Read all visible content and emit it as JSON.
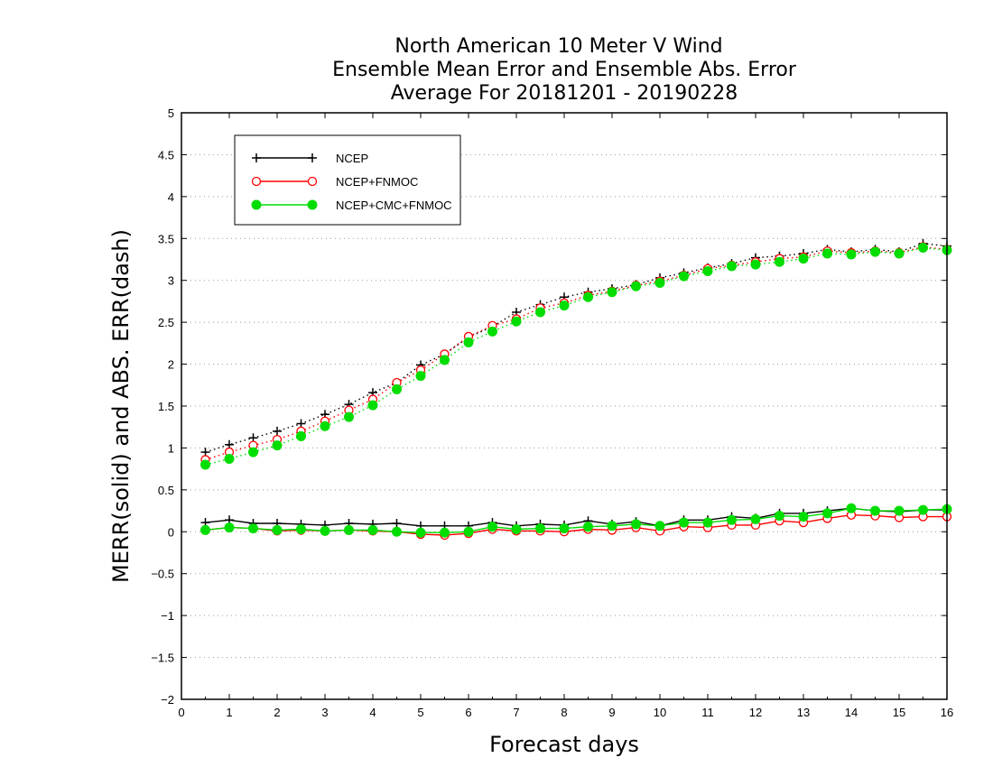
{
  "chart_data": {
    "type": "line",
    "title_lines": [
      "North American 10 Meter V Wind",
      "Ensemble Mean Error and Ensemble Abs. Error",
      "Average For 20181201 - 20190228"
    ],
    "xlabel": "Forecast days",
    "ylabel": "MERR(solid) and ABS. ERR(dash)",
    "xlim": [
      0,
      16
    ],
    "ylim": [
      -2,
      5
    ],
    "x_ticks": [
      0,
      1,
      2,
      3,
      4,
      5,
      6,
      7,
      8,
      9,
      10,
      11,
      12,
      13,
      14,
      15,
      16
    ],
    "y_ticks": [
      -2,
      -1.5,
      -1,
      -0.5,
      0,
      0.5,
      1,
      1.5,
      2,
      2.5,
      3,
      3.5,
      4,
      4.5,
      5
    ],
    "y_tick_labels": [
      "−2",
      "−1.5",
      "−1",
      "−0.5",
      "0",
      "0.5",
      "1",
      "1.5",
      "2",
      "2.5",
      "3",
      "3.5",
      "4",
      "4.5",
      "5"
    ],
    "grid": "horizontal dotted",
    "legend_position": "top-left",
    "x": [
      0.5,
      1,
      1.5,
      2,
      2.5,
      3,
      3.5,
      4,
      4.5,
      5,
      5.5,
      6,
      6.5,
      7,
      7.5,
      8,
      8.5,
      9,
      9.5,
      10,
      10.5,
      11,
      11.5,
      12,
      12.5,
      13,
      13.5,
      14,
      14.5,
      15,
      15.5,
      16
    ],
    "series": [
      {
        "name": "NCEP",
        "color": "#000000",
        "marker": "plus",
        "mean_error": [
          0.11,
          0.14,
          0.1,
          0.1,
          0.09,
          0.08,
          0.1,
          0.09,
          0.1,
          0.07,
          0.07,
          0.07,
          0.11,
          0.07,
          0.09,
          0.08,
          0.13,
          0.09,
          0.12,
          0.07,
          0.14,
          0.14,
          0.18,
          0.16,
          0.22,
          0.22,
          0.25,
          0.28,
          0.25,
          0.24,
          0.26,
          0.26
        ],
        "abs_error": [
          0.95,
          1.04,
          1.12,
          1.2,
          1.29,
          1.4,
          1.52,
          1.66,
          1.78,
          1.99,
          2.12,
          2.32,
          2.45,
          2.62,
          2.71,
          2.8,
          2.86,
          2.9,
          2.95,
          3.03,
          3.09,
          3.15,
          3.2,
          3.27,
          3.29,
          3.32,
          3.37,
          3.34,
          3.37,
          3.34,
          3.44,
          3.41
        ]
      },
      {
        "name": "NCEP+FNMOC",
        "color": "#ff0000",
        "marker": "open-circle",
        "mean_error": [
          0.02,
          0.05,
          0.04,
          0.01,
          0.02,
          0.01,
          0.02,
          0.01,
          0.0,
          -0.03,
          -0.04,
          -0.02,
          0.03,
          0.01,
          0.01,
          0.0,
          0.03,
          0.02,
          0.05,
          0.01,
          0.06,
          0.05,
          0.08,
          0.08,
          0.13,
          0.11,
          0.16,
          0.2,
          0.19,
          0.17,
          0.18,
          0.18
        ],
        "abs_error": [
          0.86,
          0.95,
          1.03,
          1.1,
          1.2,
          1.32,
          1.45,
          1.58,
          1.78,
          1.93,
          2.12,
          2.33,
          2.46,
          2.54,
          2.67,
          2.73,
          2.82,
          2.87,
          2.94,
          2.99,
          3.06,
          3.14,
          3.18,
          3.22,
          3.26,
          3.28,
          3.35,
          3.33,
          3.35,
          3.33,
          3.4,
          3.37
        ]
      },
      {
        "name": "NCEP+CMC+FNMOC",
        "color": "#00dd00",
        "marker": "filled-circle",
        "mean_error": [
          0.02,
          0.05,
          0.04,
          0.02,
          0.03,
          0.01,
          0.02,
          0.02,
          0.0,
          -0.01,
          -0.01,
          0.0,
          0.06,
          0.03,
          0.04,
          0.04,
          0.06,
          0.07,
          0.09,
          0.07,
          0.11,
          0.11,
          0.14,
          0.15,
          0.19,
          0.18,
          0.22,
          0.28,
          0.25,
          0.25,
          0.26,
          0.27
        ],
        "abs_error": [
          0.8,
          0.87,
          0.95,
          1.03,
          1.14,
          1.26,
          1.37,
          1.51,
          1.7,
          1.86,
          2.05,
          2.26,
          2.39,
          2.51,
          2.62,
          2.7,
          2.8,
          2.86,
          2.93,
          2.97,
          3.05,
          3.11,
          3.17,
          3.19,
          3.22,
          3.26,
          3.32,
          3.31,
          3.34,
          3.32,
          3.39,
          3.36
        ]
      }
    ]
  }
}
